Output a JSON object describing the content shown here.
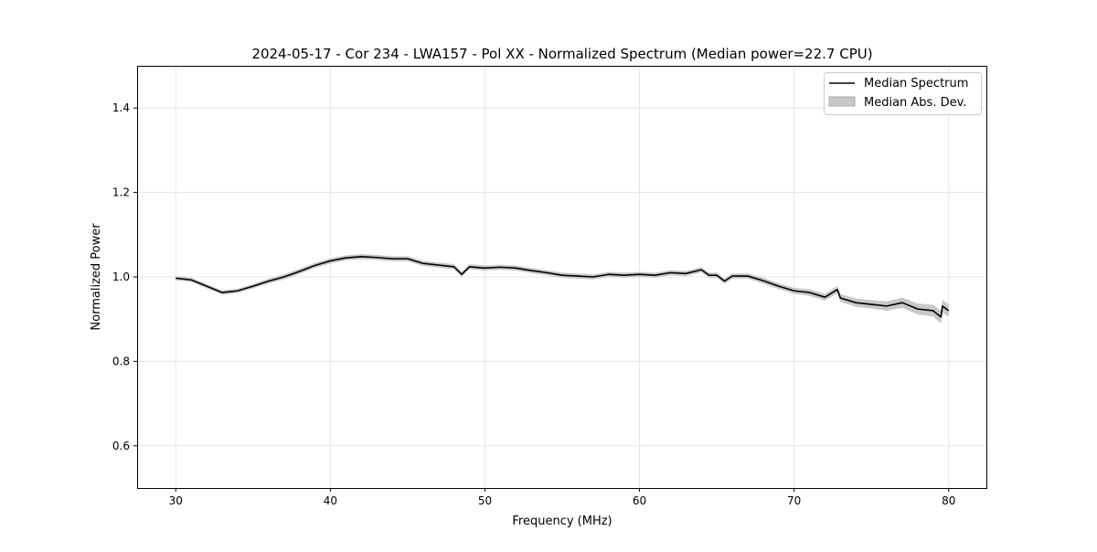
{
  "chart_data": {
    "type": "line",
    "title": "2024-05-17 - Cor 234 - LWA157 - Pol XX - Normalized Spectrum (Median power=22.7 CPU)",
    "xlabel": "Frequency (MHz)",
    "ylabel": "Normalized Power",
    "xlim": [
      27.5,
      82.5
    ],
    "ylim": [
      0.5,
      1.5
    ],
    "xticks": [
      30,
      40,
      50,
      60,
      70,
      80
    ],
    "yticks": [
      0.6,
      0.8,
      1.0,
      1.2,
      1.4
    ],
    "xtick_labels": [
      "30",
      "40",
      "50",
      "60",
      "70",
      "80"
    ],
    "ytick_labels": [
      "0.6",
      "0.8",
      "1.0",
      "1.2",
      "1.4"
    ],
    "grid": true,
    "legend_position": "top-right",
    "legend": [
      "Median Spectrum",
      "Median Abs. Dev."
    ],
    "colors": {
      "line": "#000000",
      "band": "#c8c8c8",
      "grid": "#e5e5e5"
    },
    "series": [
      {
        "name": "Median Spectrum",
        "x": [
          30,
          31,
          32,
          33,
          34,
          35,
          36,
          37,
          38,
          39,
          40,
          41,
          42,
          43,
          44,
          45,
          46,
          47,
          48,
          48.5,
          49,
          50,
          51,
          52,
          53,
          54,
          55,
          56,
          57,
          58,
          59,
          60,
          61,
          62,
          63,
          64,
          64.5,
          65,
          65.5,
          66,
          67,
          68,
          69,
          70,
          71,
          72,
          72.8,
          73,
          74,
          75,
          76,
          77,
          78,
          79,
          79.5,
          79.6,
          80
        ],
        "values": [
          0.997,
          0.993,
          0.978,
          0.963,
          0.967,
          0.978,
          0.99,
          1.0,
          1.013,
          1.027,
          1.038,
          1.045,
          1.048,
          1.046,
          1.043,
          1.043,
          1.032,
          1.028,
          1.024,
          1.006,
          1.024,
          1.021,
          1.023,
          1.021,
          1.015,
          1.01,
          1.004,
          1.002,
          1.0,
          1.006,
          1.004,
          1.006,
          1.004,
          1.01,
          1.008,
          1.017,
          1.004,
          1.004,
          0.99,
          1.002,
          1.002,
          0.991,
          0.978,
          0.967,
          0.963,
          0.952,
          0.97,
          0.95,
          0.939,
          0.935,
          0.931,
          0.939,
          0.924,
          0.92,
          0.905,
          0.931,
          0.92
        ],
        "mad": [
          0.005,
          0.005,
          0.005,
          0.005,
          0.005,
          0.005,
          0.006,
          0.006,
          0.006,
          0.006,
          0.006,
          0.006,
          0.006,
          0.006,
          0.006,
          0.006,
          0.006,
          0.006,
          0.006,
          0.006,
          0.006,
          0.006,
          0.006,
          0.006,
          0.006,
          0.006,
          0.006,
          0.006,
          0.006,
          0.006,
          0.006,
          0.006,
          0.006,
          0.006,
          0.006,
          0.006,
          0.006,
          0.006,
          0.006,
          0.006,
          0.006,
          0.007,
          0.007,
          0.007,
          0.008,
          0.008,
          0.009,
          0.009,
          0.01,
          0.01,
          0.011,
          0.012,
          0.013,
          0.014,
          0.015,
          0.015,
          0.015
        ]
      }
    ]
  }
}
